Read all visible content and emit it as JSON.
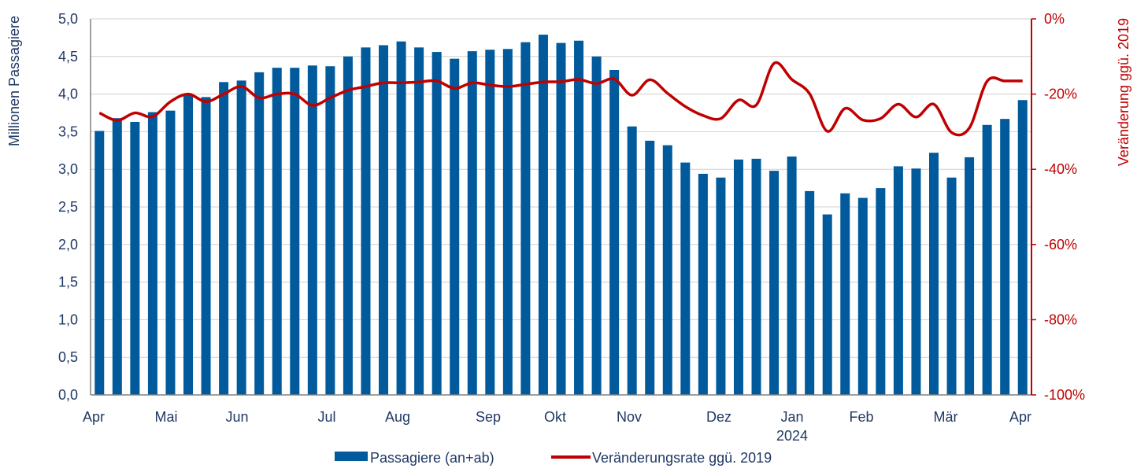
{
  "chart_data": {
    "type": "bar+line",
    "title": "",
    "ylabel_left": "Millionen Passagiere",
    "ylabel_right": "Veränderung ggü. 2019",
    "ylim_left": [
      0,
      5
    ],
    "ylim_right": [
      -100,
      0
    ],
    "y_ticks_left": [
      "0,0",
      "0,5",
      "1,0",
      "1,5",
      "2,0",
      "2,5",
      "3,0",
      "3,5",
      "4,0",
      "4,5",
      "5,0"
    ],
    "y_ticks_right": [
      "-100%",
      "-80%",
      "-60%",
      "-40%",
      "-20%",
      "0%"
    ],
    "x_month_labels": [
      "Apr",
      "Mai",
      "Jun",
      "Jul",
      "Aug",
      "Sep",
      "Okt",
      "Nov",
      "Dez",
      "Jan",
      "Feb",
      "Mär",
      "Apr"
    ],
    "x_year_label": "2024",
    "grid": true,
    "legend_position": "bottom",
    "series": [
      {
        "name": "Passagiere (an+ab)",
        "type": "bar",
        "axis": "left",
        "color": "#005a9c",
        "values": [
          3.51,
          3.68,
          3.63,
          3.76,
          3.78,
          3.99,
          3.96,
          4.16,
          4.18,
          4.29,
          4.35,
          4.35,
          4.38,
          4.37,
          4.5,
          4.62,
          4.65,
          4.7,
          4.62,
          4.56,
          4.47,
          4.57,
          4.59,
          4.6,
          4.69,
          4.79,
          4.68,
          4.71,
          4.5,
          4.32,
          3.57,
          3.38,
          3.32,
          3.09,
          2.94,
          2.89,
          3.13,
          3.14,
          2.98,
          3.17,
          2.71,
          2.4,
          2.68,
          2.62,
          2.75,
          3.04,
          3.01,
          3.22,
          2.89,
          3.16,
          3.59,
          3.67,
          3.92
        ]
      },
      {
        "name": "Veränderungsrate ggü. 2019",
        "type": "line",
        "axis": "right",
        "color": "#c00000",
        "values": [
          -25,
          -27,
          -25,
          -26,
          -22,
          -20,
          -22,
          -20,
          -18,
          -21,
          -20,
          -20,
          -23,
          -21,
          -19,
          -18,
          -17,
          -17,
          -16.8,
          -16.5,
          -18.5,
          -17,
          -17.6,
          -18,
          -17.4,
          -16.8,
          -16.7,
          -16.1,
          -17.2,
          -16,
          -20.3,
          -16.2,
          -19.8,
          -23.3,
          -25.7,
          -26.5,
          -21.6,
          -22.9,
          -11.8,
          -16.1,
          -19.9,
          -29.9,
          -23.8,
          -26.9,
          -26.5,
          -22.7,
          -26.1,
          -22.7,
          -30.2,
          -29,
          -16.6,
          -16.5,
          -16.5
        ]
      }
    ]
  }
}
